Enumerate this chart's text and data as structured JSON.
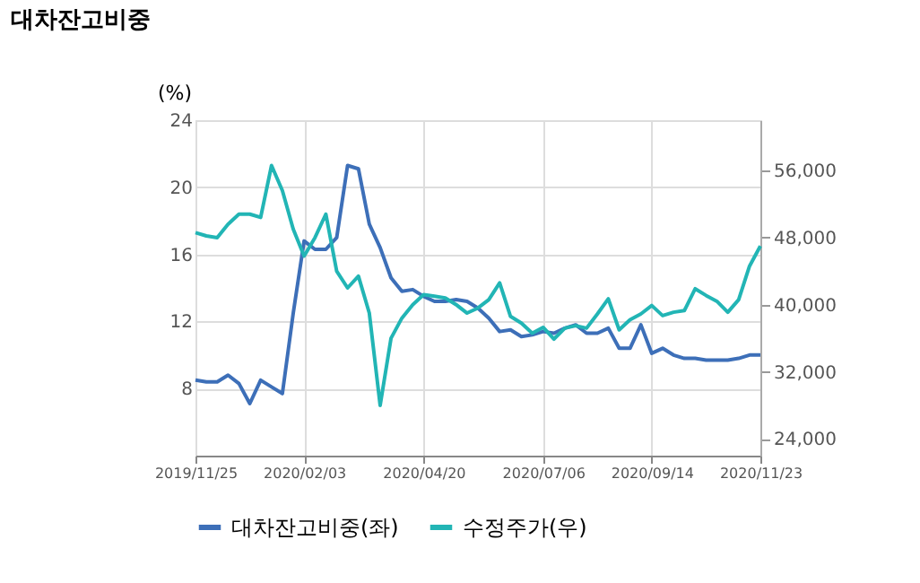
{
  "chart_data": {
    "type": "line",
    "title": "대차잔고비중",
    "ylabel": "(%)",
    "x": [
      "2019-11-25",
      "2019-12-02",
      "2019-12-09",
      "2019-12-16",
      "2019-12-23",
      "2019-12-30",
      "2020-01-06",
      "2020-01-13",
      "2020-01-20",
      "2020-01-27",
      "2020-02-03",
      "2020-02-10",
      "2020-02-17",
      "2020-02-24",
      "2020-03-02",
      "2020-03-09",
      "2020-03-16",
      "2020-03-23",
      "2020-03-30",
      "2020-04-06",
      "2020-04-13",
      "2020-04-20",
      "2020-04-27",
      "2020-05-04",
      "2020-05-11",
      "2020-05-18",
      "2020-05-25",
      "2020-06-01",
      "2020-06-08",
      "2020-06-15",
      "2020-06-22",
      "2020-06-29",
      "2020-07-06",
      "2020-07-13",
      "2020-07-20",
      "2020-07-27",
      "2020-08-03",
      "2020-08-10",
      "2020-08-17",
      "2020-08-24",
      "2020-08-31",
      "2020-09-07",
      "2020-09-14",
      "2020-09-21",
      "2020-09-28",
      "2020-10-05",
      "2020-10-12",
      "2020-10-19",
      "2020-10-26",
      "2020-11-02",
      "2020-11-09",
      "2020-11-16",
      "2020-11-23"
    ],
    "series": [
      {
        "name": "대차잔고비중(좌)",
        "color": "#3d6fb8",
        "values": [
          8.5,
          8.4,
          8.4,
          8.8,
          8.3,
          7.1,
          8.5,
          8.1,
          7.7,
          12.5,
          16.8,
          16.3,
          16.3,
          17.0,
          21.3,
          21.1,
          17.8,
          16.4,
          14.6,
          13.8,
          13.9,
          13.5,
          13.2,
          13.2,
          13.3,
          13.2,
          12.8,
          12.2,
          11.4,
          11.5,
          11.1,
          11.2,
          11.4,
          11.3,
          11.6,
          11.8,
          11.3,
          11.3,
          11.6,
          10.4,
          10.4,
          11.8,
          10.1,
          10.4,
          10.0,
          9.8,
          9.8,
          9.7,
          9.7,
          9.7,
          9.8,
          10.0,
          10.0
        ]
      },
      {
        "name": "수정주가(우)",
        "color": "#22b5b5",
        "axis": "y2",
        "values": [
          48600,
          48200,
          48000,
          49600,
          50800,
          50800,
          50400,
          56600,
          53600,
          49000,
          45800,
          48000,
          50800,
          44000,
          42000,
          43400,
          39000,
          28000,
          36000,
          38400,
          40000,
          41200,
          41000,
          40800,
          40000,
          39000,
          39600,
          40600,
          42600,
          38600,
          37800,
          36600,
          37300,
          35900,
          37200,
          37500,
          37200,
          38900,
          40700,
          37000,
          38200,
          38900,
          39900,
          38700,
          39100,
          39300,
          41900,
          41100,
          40400,
          39100,
          40600,
          44600,
          47000
        ]
      }
    ],
    "xlim": [
      "2019-11-25",
      "2020-11-23"
    ],
    "xticks": [
      {
        "value": "2019-11-25",
        "label": "2019/11/25"
      },
      {
        "value": "2020-02-03",
        "label": "2020/02/03"
      },
      {
        "value": "2020-04-20",
        "label": "2020/04/20"
      },
      {
        "value": "2020-07-06",
        "label": "2020/07/06"
      },
      {
        "value": "2020-09-14",
        "label": "2020/09/14"
      },
      {
        "value": "2020-11-23",
        "label": "2020/11/23"
      }
    ],
    "ylim": [
      4,
      24
    ],
    "yticks": [
      8,
      12,
      16,
      20,
      24
    ],
    "y2lim": [
      22000,
      62000
    ],
    "y2ticks": [
      {
        "value": 24000,
        "label": "24,000"
      },
      {
        "value": 32000,
        "label": "32,000"
      },
      {
        "value": 40000,
        "label": "40,000"
      },
      {
        "value": 48000,
        "label": "48,000"
      },
      {
        "value": 56000,
        "label": "56,000"
      }
    ],
    "grid": true,
    "legend": "bottom",
    "line_style": "solid",
    "marker": "none"
  }
}
